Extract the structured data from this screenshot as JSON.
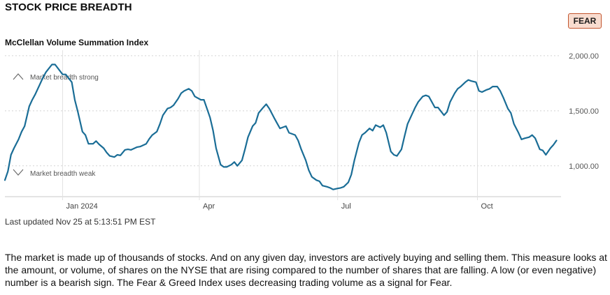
{
  "header": {
    "title": "STOCK PRICE BREADTH",
    "rating": "FEAR"
  },
  "chart_data": {
    "type": "line",
    "title": "McClellan Volume Summation Index",
    "y_ticks": [
      "2,000.00",
      "1,500.00",
      "1,000.00"
    ],
    "y_tick_values": [
      2000,
      1500,
      1000
    ],
    "ylim": [
      720,
      2050
    ],
    "x_ticks": [
      {
        "label": "Jan 2024",
        "date": "2024-01-02"
      },
      {
        "label": "Apr",
        "date": "2024-04-01"
      },
      {
        "label": "Jul",
        "date": "2024-07-01"
      },
      {
        "label": "Oct",
        "date": "2024-10-01"
      }
    ],
    "xlim": [
      "2023-11-25",
      "2024-11-25"
    ],
    "grid": true,
    "line_color": "#1a6d96",
    "annotations": {
      "strong": "Market breadth strong",
      "weak": "Market breadth weak"
    },
    "series": [
      {
        "points": [
          [
            "2023-11-25",
            870
          ],
          [
            "2023-11-27",
            950
          ],
          [
            "2023-11-29",
            1100
          ],
          [
            "2023-12-01",
            1160
          ],
          [
            "2023-12-04",
            1240
          ],
          [
            "2023-12-06",
            1310
          ],
          [
            "2023-12-08",
            1360
          ],
          [
            "2023-12-11",
            1540
          ],
          [
            "2023-12-13",
            1600
          ],
          [
            "2023-12-15",
            1650
          ],
          [
            "2023-12-18",
            1740
          ],
          [
            "2023-12-20",
            1800
          ],
          [
            "2023-12-22",
            1850
          ],
          [
            "2023-12-26",
            1920
          ],
          [
            "2023-12-28",
            1920
          ],
          [
            "2024-01-02",
            1830
          ],
          [
            "2024-01-04",
            1830
          ],
          [
            "2024-01-08",
            1760
          ],
          [
            "2024-01-10",
            1600
          ],
          [
            "2024-01-12",
            1490
          ],
          [
            "2024-01-15",
            1310
          ],
          [
            "2024-01-17",
            1280
          ],
          [
            "2024-01-19",
            1200
          ],
          [
            "2024-01-22",
            1200
          ],
          [
            "2024-01-24",
            1225
          ],
          [
            "2024-01-26",
            1195
          ],
          [
            "2024-01-29",
            1160
          ],
          [
            "2024-01-31",
            1120
          ],
          [
            "2024-02-02",
            1090
          ],
          [
            "2024-02-05",
            1080
          ],
          [
            "2024-02-07",
            1100
          ],
          [
            "2024-02-09",
            1095
          ],
          [
            "2024-02-12",
            1145
          ],
          [
            "2024-02-14",
            1150
          ],
          [
            "2024-02-16",
            1145
          ],
          [
            "2024-02-20",
            1170
          ],
          [
            "2024-02-22",
            1175
          ],
          [
            "2024-02-26",
            1200
          ],
          [
            "2024-02-28",
            1245
          ],
          [
            "2024-03-01",
            1280
          ],
          [
            "2024-03-04",
            1310
          ],
          [
            "2024-03-06",
            1380
          ],
          [
            "2024-03-08",
            1460
          ],
          [
            "2024-03-11",
            1520
          ],
          [
            "2024-03-13",
            1530
          ],
          [
            "2024-03-15",
            1550
          ],
          [
            "2024-03-18",
            1610
          ],
          [
            "2024-03-20",
            1660
          ],
          [
            "2024-03-22",
            1680
          ],
          [
            "2024-03-25",
            1700
          ],
          [
            "2024-03-27",
            1680
          ],
          [
            "2024-03-29",
            1630
          ],
          [
            "2024-04-02",
            1600
          ],
          [
            "2024-04-04",
            1600
          ],
          [
            "2024-04-08",
            1440
          ],
          [
            "2024-04-10",
            1320
          ],
          [
            "2024-04-12",
            1160
          ],
          [
            "2024-04-15",
            1010
          ],
          [
            "2024-04-17",
            990
          ],
          [
            "2024-04-19",
            990
          ],
          [
            "2024-04-22",
            1010
          ],
          [
            "2024-04-24",
            1035
          ],
          [
            "2024-04-26",
            1000
          ],
          [
            "2024-04-29",
            1050
          ],
          [
            "2024-05-01",
            1150
          ],
          [
            "2024-05-03",
            1260
          ],
          [
            "2024-05-06",
            1360
          ],
          [
            "2024-05-08",
            1390
          ],
          [
            "2024-05-10",
            1480
          ],
          [
            "2024-05-13",
            1530
          ],
          [
            "2024-05-15",
            1560
          ],
          [
            "2024-05-17",
            1520
          ],
          [
            "2024-05-20",
            1440
          ],
          [
            "2024-05-22",
            1390
          ],
          [
            "2024-05-24",
            1340
          ],
          [
            "2024-05-28",
            1360
          ],
          [
            "2024-05-30",
            1300
          ],
          [
            "2024-06-03",
            1280
          ],
          [
            "2024-06-05",
            1230
          ],
          [
            "2024-06-07",
            1150
          ],
          [
            "2024-06-10",
            1050
          ],
          [
            "2024-06-12",
            960
          ],
          [
            "2024-06-14",
            900
          ],
          [
            "2024-06-17",
            870
          ],
          [
            "2024-06-19",
            860
          ],
          [
            "2024-06-21",
            820
          ],
          [
            "2024-06-24",
            810
          ],
          [
            "2024-06-26",
            800
          ],
          [
            "2024-06-28",
            785
          ],
          [
            "2024-07-01",
            795
          ],
          [
            "2024-07-03",
            800
          ],
          [
            "2024-07-05",
            810
          ],
          [
            "2024-07-08",
            850
          ],
          [
            "2024-07-10",
            920
          ],
          [
            "2024-07-12",
            1050
          ],
          [
            "2024-07-15",
            1210
          ],
          [
            "2024-07-17",
            1280
          ],
          [
            "2024-07-19",
            1300
          ],
          [
            "2024-07-22",
            1340
          ],
          [
            "2024-07-24",
            1320
          ],
          [
            "2024-07-26",
            1370
          ],
          [
            "2024-07-29",
            1350
          ],
          [
            "2024-07-31",
            1370
          ],
          [
            "2024-08-02",
            1300
          ],
          [
            "2024-08-05",
            1130
          ],
          [
            "2024-08-07",
            1100
          ],
          [
            "2024-08-09",
            1090
          ],
          [
            "2024-08-12",
            1150
          ],
          [
            "2024-08-14",
            1270
          ],
          [
            "2024-08-16",
            1380
          ],
          [
            "2024-08-19",
            1470
          ],
          [
            "2024-08-21",
            1530
          ],
          [
            "2024-08-23",
            1580
          ],
          [
            "2024-08-26",
            1630
          ],
          [
            "2024-08-28",
            1640
          ],
          [
            "2024-08-30",
            1630
          ],
          [
            "2024-09-03",
            1530
          ],
          [
            "2024-09-05",
            1530
          ],
          [
            "2024-09-09",
            1460
          ],
          [
            "2024-09-11",
            1490
          ],
          [
            "2024-09-13",
            1580
          ],
          [
            "2024-09-16",
            1660
          ],
          [
            "2024-09-18",
            1700
          ],
          [
            "2024-09-20",
            1720
          ],
          [
            "2024-09-23",
            1760
          ],
          [
            "2024-09-25",
            1780
          ],
          [
            "2024-09-27",
            1770
          ],
          [
            "2024-09-30",
            1760
          ],
          [
            "2024-10-02",
            1680
          ],
          [
            "2024-10-04",
            1670
          ],
          [
            "2024-10-07",
            1690
          ],
          [
            "2024-10-09",
            1700
          ],
          [
            "2024-10-11",
            1720
          ],
          [
            "2024-10-14",
            1720
          ],
          [
            "2024-10-16",
            1680
          ],
          [
            "2024-10-18",
            1620
          ],
          [
            "2024-10-21",
            1520
          ],
          [
            "2024-10-23",
            1480
          ],
          [
            "2024-10-25",
            1380
          ],
          [
            "2024-10-28",
            1300
          ],
          [
            "2024-10-30",
            1240
          ],
          [
            "2024-11-01",
            1250
          ],
          [
            "2024-11-04",
            1260
          ],
          [
            "2024-11-06",
            1280
          ],
          [
            "2024-11-08",
            1250
          ],
          [
            "2024-11-11",
            1150
          ],
          [
            "2024-11-13",
            1140
          ],
          [
            "2024-11-15",
            1100
          ],
          [
            "2024-11-18",
            1160
          ],
          [
            "2024-11-20",
            1190
          ],
          [
            "2024-11-22",
            1230
          ]
        ]
      }
    ]
  },
  "footer": {
    "last_updated": "Last updated Nov 25 at 5:13:51 PM EST",
    "description": "The market is made up of thousands of stocks. And on any given day, investors are actively buying and selling them. This measure looks at the amount, or volume, of shares on the NYSE that are rising compared to the number of shares that are falling. A low (or even negative) number is a bearish sign. The Fear & Greed Index uses decreasing trading volume as a signal for Fear."
  }
}
